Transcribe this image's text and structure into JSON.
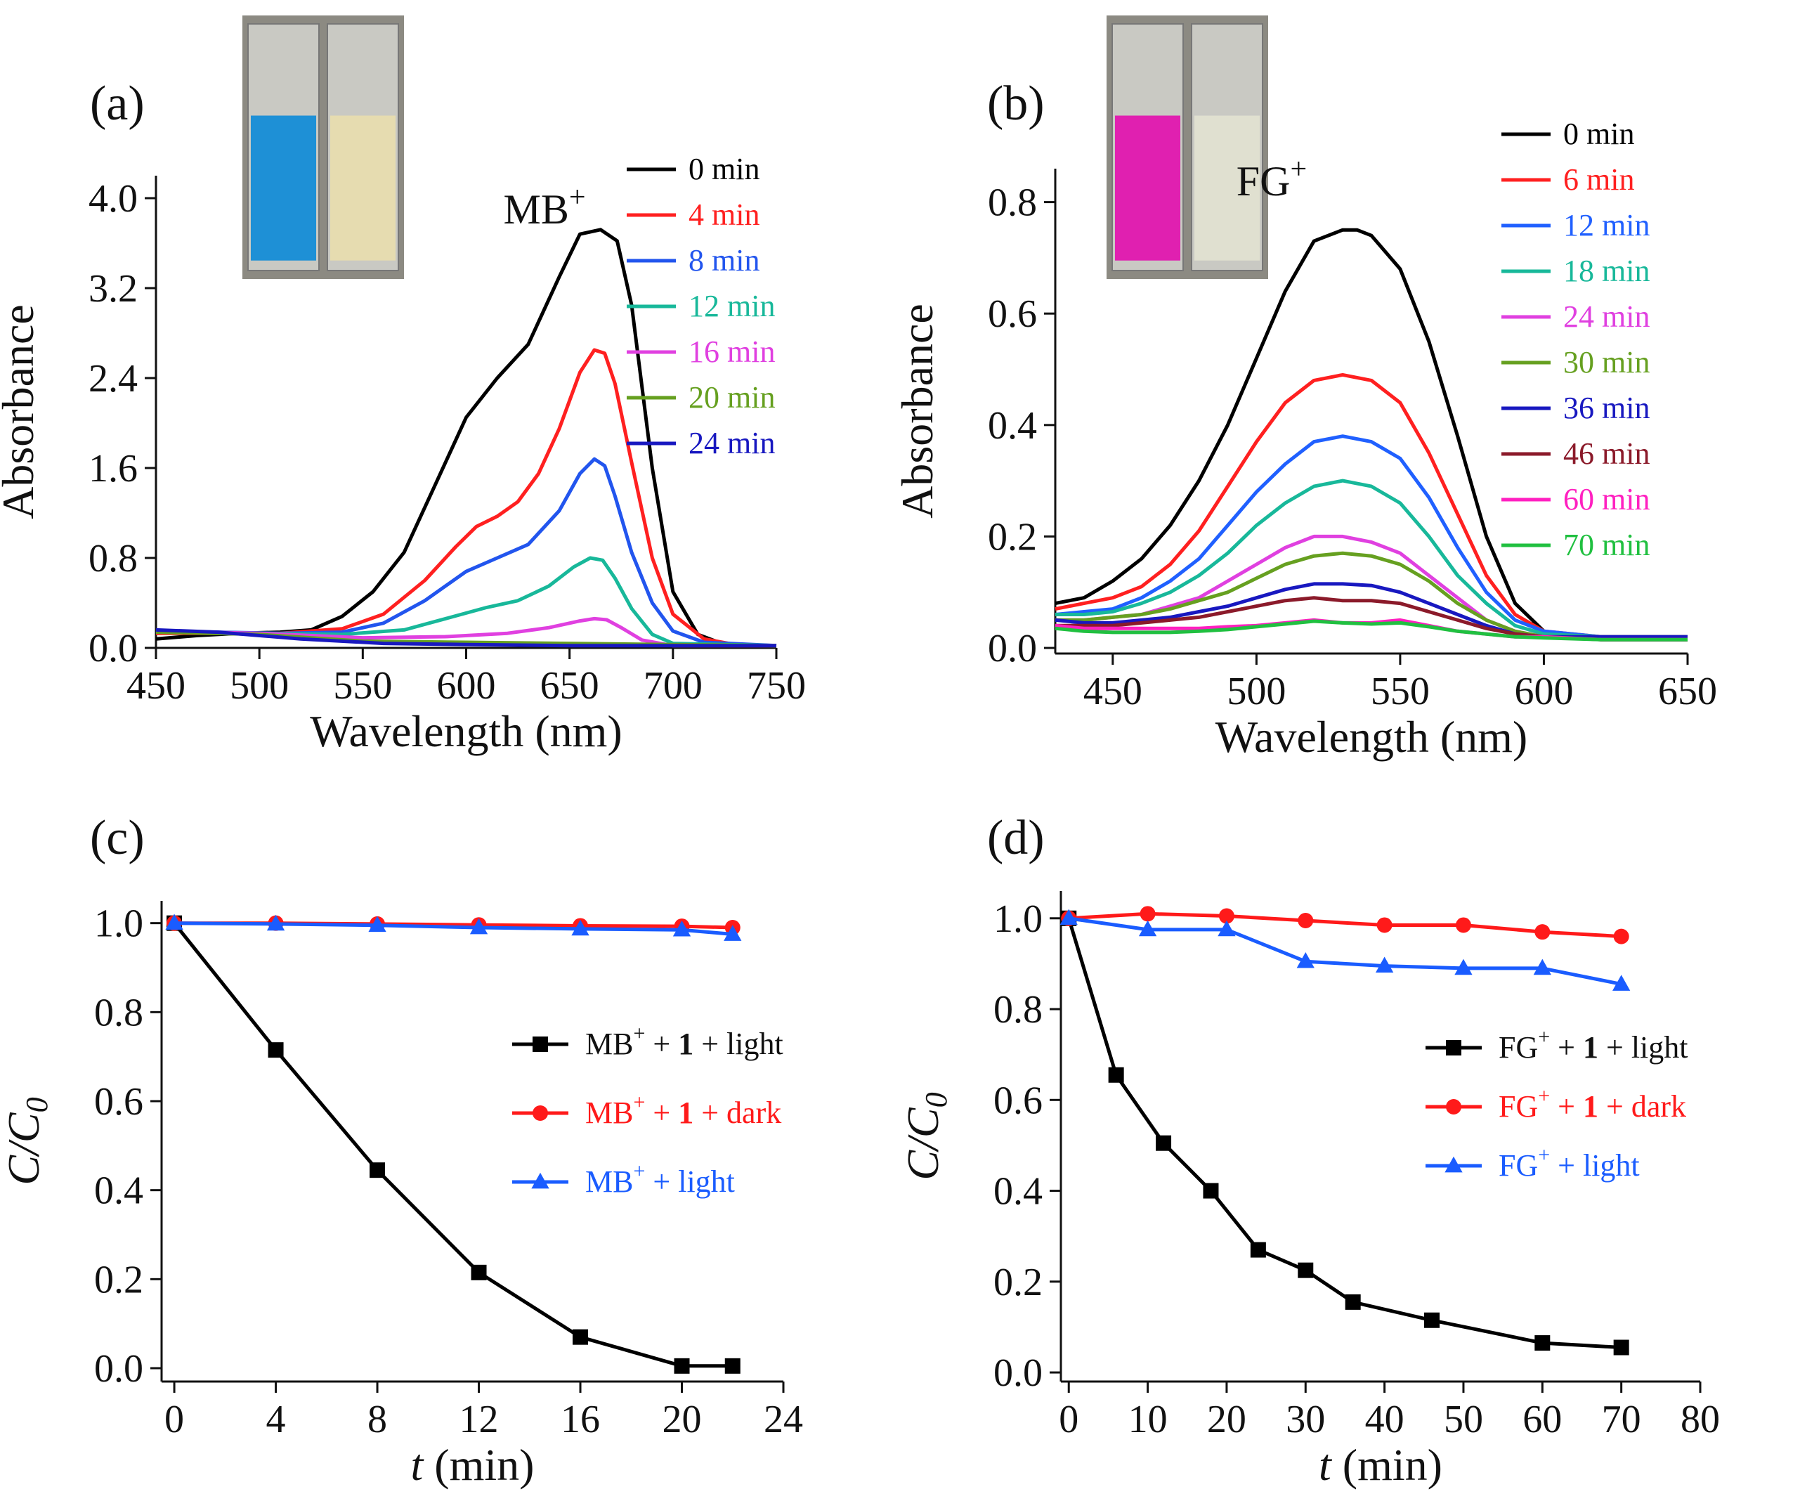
{
  "chart_data": [
    {
      "type": "line",
      "panel_label": "(a)",
      "annotation": {
        "base": "MB",
        "sup": "+"
      },
      "xlabel": "Wavelength (nm)",
      "ylabel": "Absorbance",
      "xlim": [
        450,
        750
      ],
      "ylim": [
        0,
        4.2
      ],
      "xticks": [
        450,
        500,
        550,
        600,
        650,
        700,
        750
      ],
      "yticks": [
        0.0,
        0.8,
        1.6,
        2.4,
        3.2,
        4.0
      ],
      "ytick_labels": [
        "0.0",
        "0.8",
        "1.6",
        "2.4",
        "3.2",
        "4.0"
      ],
      "inset": {
        "description": "cuvette photos",
        "colors": [
          "#1e90d6",
          "#e6dcb0"
        ]
      },
      "series": [
        {
          "name": "0 min",
          "color": "#000000",
          "x": [
            450,
            470,
            490,
            510,
            525,
            540,
            555,
            570,
            585,
            600,
            615,
            630,
            645,
            655,
            665,
            673,
            680,
            690,
            700,
            712,
            725,
            750
          ],
          "y": [
            0.08,
            0.11,
            0.13,
            0.14,
            0.16,
            0.28,
            0.5,
            0.85,
            1.45,
            2.05,
            2.4,
            2.7,
            3.3,
            3.68,
            3.72,
            3.62,
            3.05,
            1.6,
            0.5,
            0.12,
            0.03,
            0.02
          ]
        },
        {
          "name": "4 min",
          "color": "#ff2020",
          "x": [
            450,
            480,
            510,
            540,
            560,
            580,
            595,
            605,
            615,
            625,
            635,
            645,
            655,
            662,
            667,
            672,
            680,
            690,
            700,
            715,
            730,
            750
          ],
          "y": [
            0.13,
            0.13,
            0.13,
            0.17,
            0.3,
            0.6,
            0.9,
            1.08,
            1.17,
            1.3,
            1.55,
            1.95,
            2.45,
            2.65,
            2.62,
            2.35,
            1.65,
            0.8,
            0.3,
            0.08,
            0.03,
            0.02
          ]
        },
        {
          "name": "8 min",
          "color": "#2255ee",
          "x": [
            450,
            480,
            510,
            540,
            560,
            580,
            600,
            615,
            630,
            645,
            655,
            662,
            667,
            672,
            680,
            690,
            700,
            715,
            750
          ],
          "y": [
            0.15,
            0.14,
            0.13,
            0.14,
            0.22,
            0.42,
            0.68,
            0.8,
            0.92,
            1.22,
            1.55,
            1.68,
            1.62,
            1.35,
            0.85,
            0.4,
            0.15,
            0.05,
            0.02
          ]
        },
        {
          "name": "12 min",
          "color": "#18b89a",
          "x": [
            450,
            500,
            540,
            570,
            590,
            610,
            625,
            640,
            652,
            660,
            666,
            672,
            680,
            690,
            700,
            750
          ],
          "y": [
            0.15,
            0.13,
            0.12,
            0.16,
            0.26,
            0.36,
            0.42,
            0.55,
            0.72,
            0.8,
            0.78,
            0.62,
            0.35,
            0.12,
            0.04,
            0.02
          ]
        },
        {
          "name": "16 min",
          "color": "#e040e0",
          "x": [
            450,
            500,
            550,
            590,
            620,
            640,
            655,
            662,
            668,
            675,
            685,
            700,
            750
          ],
          "y": [
            0.15,
            0.13,
            0.09,
            0.1,
            0.13,
            0.18,
            0.24,
            0.26,
            0.25,
            0.18,
            0.07,
            0.02,
            0.02
          ]
        },
        {
          "name": "20 min",
          "color": "#66a020",
          "x": [
            450,
            500,
            550,
            600,
            650,
            700,
            750
          ],
          "y": [
            0.14,
            0.12,
            0.06,
            0.05,
            0.04,
            0.03,
            0.02
          ]
        },
        {
          "name": "24 min",
          "color": "#1818c0",
          "x": [
            450,
            480,
            520,
            560,
            600,
            650,
            700,
            750
          ],
          "y": [
            0.16,
            0.14,
            0.08,
            0.04,
            0.03,
            0.02,
            0.02,
            0.02
          ]
        }
      ]
    },
    {
      "type": "line",
      "panel_label": "(b)",
      "annotation": {
        "base": "FG",
        "sup": "+"
      },
      "xlabel": "Wavelength (nm)",
      "ylabel": "Absorbance",
      "xlim": [
        430,
        650
      ],
      "ylim": [
        -0.01,
        0.86
      ],
      "xticks": [
        450,
        500,
        550,
        600,
        650
      ],
      "yticks": [
        0.0,
        0.2,
        0.4,
        0.6,
        0.8
      ],
      "ytick_labels": [
        "0.0",
        "0.2",
        "0.4",
        "0.6",
        "0.8"
      ],
      "inset": {
        "description": "cuvette photos",
        "colors": [
          "#e020b0",
          "#e0e0d0"
        ]
      },
      "series": [
        {
          "name": "0 min",
          "color": "#000000",
          "x": [
            430,
            440,
            450,
            460,
            470,
            480,
            490,
            500,
            510,
            520,
            530,
            535,
            540,
            550,
            560,
            570,
            580,
            590,
            600,
            610,
            620,
            650
          ],
          "y": [
            0.08,
            0.09,
            0.12,
            0.16,
            0.22,
            0.3,
            0.4,
            0.52,
            0.64,
            0.73,
            0.75,
            0.75,
            0.74,
            0.68,
            0.55,
            0.38,
            0.2,
            0.08,
            0.03,
            0.02,
            0.015,
            0.015
          ]
        },
        {
          "name": "6 min",
          "color": "#ff2020",
          "x": [
            430,
            440,
            450,
            460,
            470,
            480,
            490,
            500,
            510,
            520,
            530,
            540,
            550,
            560,
            570,
            580,
            590,
            600,
            620,
            650
          ],
          "y": [
            0.07,
            0.08,
            0.09,
            0.11,
            0.15,
            0.21,
            0.29,
            0.37,
            0.44,
            0.48,
            0.49,
            0.48,
            0.44,
            0.35,
            0.24,
            0.13,
            0.06,
            0.03,
            0.02,
            0.02
          ]
        },
        {
          "name": "12 min",
          "color": "#2060ff",
          "x": [
            430,
            440,
            450,
            460,
            470,
            480,
            490,
            500,
            510,
            520,
            530,
            540,
            550,
            560,
            570,
            580,
            590,
            600,
            620,
            650
          ],
          "y": [
            0.06,
            0.065,
            0.07,
            0.09,
            0.12,
            0.16,
            0.22,
            0.28,
            0.33,
            0.37,
            0.38,
            0.37,
            0.34,
            0.27,
            0.18,
            0.1,
            0.05,
            0.03,
            0.02,
            0.02
          ]
        },
        {
          "name": "18 min",
          "color": "#18b89a",
          "x": [
            430,
            440,
            450,
            460,
            470,
            480,
            490,
            500,
            510,
            520,
            530,
            540,
            550,
            560,
            570,
            580,
            590,
            600,
            620,
            650
          ],
          "y": [
            0.06,
            0.06,
            0.065,
            0.08,
            0.1,
            0.13,
            0.17,
            0.22,
            0.26,
            0.29,
            0.3,
            0.29,
            0.26,
            0.2,
            0.13,
            0.08,
            0.04,
            0.025,
            0.02,
            0.02
          ]
        },
        {
          "name": "24 min",
          "color": "#e040e0",
          "x": [
            430,
            440,
            450,
            460,
            470,
            480,
            490,
            500,
            510,
            520,
            530,
            540,
            550,
            560,
            570,
            580,
            590,
            600,
            620,
            650
          ],
          "y": [
            0.05,
            0.05,
            0.055,
            0.06,
            0.075,
            0.09,
            0.12,
            0.15,
            0.18,
            0.2,
            0.2,
            0.19,
            0.17,
            0.13,
            0.09,
            0.05,
            0.03,
            0.02,
            0.02,
            0.02
          ]
        },
        {
          "name": "30 min",
          "color": "#66a020",
          "x": [
            430,
            440,
            450,
            460,
            470,
            480,
            490,
            500,
            510,
            520,
            530,
            540,
            550,
            560,
            570,
            580,
            590,
            600,
            620,
            650
          ],
          "y": [
            0.05,
            0.05,
            0.055,
            0.06,
            0.07,
            0.085,
            0.1,
            0.125,
            0.15,
            0.165,
            0.17,
            0.165,
            0.15,
            0.12,
            0.08,
            0.05,
            0.03,
            0.02,
            0.02,
            0.02
          ]
        },
        {
          "name": "36 min",
          "color": "#1818c0",
          "x": [
            430,
            440,
            450,
            460,
            470,
            480,
            490,
            500,
            510,
            520,
            530,
            540,
            550,
            560,
            570,
            580,
            590,
            600,
            620,
            650
          ],
          "y": [
            0.05,
            0.045,
            0.045,
            0.05,
            0.055,
            0.065,
            0.075,
            0.09,
            0.105,
            0.115,
            0.115,
            0.112,
            0.1,
            0.08,
            0.06,
            0.04,
            0.025,
            0.02,
            0.02,
            0.02
          ]
        },
        {
          "name": "46 min",
          "color": "#8b1a2a",
          "x": [
            430,
            440,
            450,
            460,
            470,
            480,
            490,
            500,
            510,
            520,
            530,
            540,
            550,
            560,
            570,
            580,
            590,
            600,
            620,
            650
          ],
          "y": [
            0.04,
            0.04,
            0.04,
            0.045,
            0.05,
            0.055,
            0.065,
            0.075,
            0.085,
            0.09,
            0.085,
            0.085,
            0.08,
            0.065,
            0.05,
            0.035,
            0.025,
            0.02,
            0.015,
            0.015
          ]
        },
        {
          "name": "60 min",
          "color": "#ff20c0",
          "x": [
            430,
            440,
            450,
            460,
            470,
            480,
            490,
            500,
            510,
            520,
            530,
            540,
            550,
            560,
            570,
            580,
            590,
            600,
            620,
            650
          ],
          "y": [
            0.04,
            0.035,
            0.035,
            0.035,
            0.035,
            0.035,
            0.038,
            0.04,
            0.045,
            0.05,
            0.045,
            0.045,
            0.05,
            0.04,
            0.03,
            0.025,
            0.02,
            0.02,
            0.015,
            0.015
          ]
        },
        {
          "name": "70 min",
          "color": "#20c040",
          "x": [
            430,
            440,
            450,
            460,
            470,
            480,
            490,
            500,
            510,
            520,
            530,
            540,
            550,
            560,
            570,
            580,
            590,
            600,
            620,
            650
          ],
          "y": [
            0.035,
            0.03,
            0.028,
            0.028,
            0.028,
            0.03,
            0.033,
            0.038,
            0.043,
            0.048,
            0.045,
            0.043,
            0.045,
            0.038,
            0.03,
            0.025,
            0.02,
            0.018,
            0.015,
            0.015
          ]
        }
      ]
    },
    {
      "type": "line",
      "panel_label": "(c)",
      "xlabel": "t (min)",
      "ylabel": "C/C0",
      "xlim": [
        -0.5,
        24
      ],
      "ylim": [
        -0.03,
        1.05
      ],
      "xticks": [
        0,
        4,
        8,
        12,
        16,
        20,
        24
      ],
      "yticks": [
        0.0,
        0.2,
        0.4,
        0.6,
        0.8,
        1.0
      ],
      "ytick_labels": [
        "0.0",
        "0.2",
        "0.4",
        "0.6",
        "0.8",
        "1.0"
      ],
      "series": [
        {
          "name": "MB+ + 1 + light",
          "legend": [
            "MB",
            "+",
            " + ",
            "1",
            " + light"
          ],
          "color": "#000000",
          "marker": "square",
          "x": [
            0,
            4,
            8,
            12,
            16,
            20,
            22
          ],
          "y": [
            1.0,
            0.715,
            0.445,
            0.215,
            0.07,
            0.005,
            0.005
          ]
        },
        {
          "name": "MB+ + 1 + dark",
          "legend": [
            "MB",
            "+",
            " + ",
            "1",
            " +  dark"
          ],
          "color": "#ff1a1a",
          "marker": "circle",
          "x": [
            0,
            4,
            8,
            12,
            16,
            20,
            22
          ],
          "y": [
            1.0,
            1.0,
            0.998,
            0.996,
            0.994,
            0.993,
            0.99
          ]
        },
        {
          "name": "MB+ + light",
          "legend": [
            "MB",
            "+",
            " + light",
            "",
            ""
          ],
          "color": "#1a5cff",
          "marker": "triangle",
          "x": [
            0,
            4,
            8,
            12,
            16,
            20,
            22
          ],
          "y": [
            1.0,
            0.998,
            0.995,
            0.99,
            0.987,
            0.985,
            0.975
          ]
        }
      ]
    },
    {
      "type": "line",
      "panel_label": "(d)",
      "xlabel": "t (min)",
      "ylabel": "C/C0",
      "xlim": [
        -1,
        80
      ],
      "ylim": [
        -0.02,
        1.06
      ],
      "xticks": [
        0,
        10,
        20,
        30,
        40,
        50,
        60,
        70,
        80
      ],
      "yticks": [
        0.0,
        0.2,
        0.4,
        0.6,
        0.8,
        1.0
      ],
      "ytick_labels": [
        "0.0",
        "0.2",
        "0.4",
        "0.6",
        "0.8",
        "1.0"
      ],
      "series": [
        {
          "name": "FG+ + 1 + light",
          "legend": [
            "FG",
            "+",
            " + ",
            "1",
            " + light"
          ],
          "color": "#000000",
          "marker": "square",
          "x": [
            0,
            6,
            12,
            18,
            24,
            30,
            36,
            46,
            60,
            70
          ],
          "y": [
            1.0,
            0.655,
            0.505,
            0.4,
            0.27,
            0.225,
            0.155,
            0.115,
            0.065,
            0.055
          ]
        },
        {
          "name": "FG+ + 1 + dark",
          "legend": [
            "FG",
            "+",
            " + ",
            "1",
            " + dark"
          ],
          "color": "#ff1a1a",
          "marker": "circle",
          "x": [
            0,
            10,
            20,
            30,
            40,
            50,
            60,
            70
          ],
          "y": [
            1.0,
            1.01,
            1.005,
            0.995,
            0.985,
            0.985,
            0.97,
            0.96
          ]
        },
        {
          "name": "FG+ + light",
          "legend": [
            "FG",
            "+",
            " + light",
            "",
            ""
          ],
          "color": "#1a5cff",
          "marker": "triangle",
          "x": [
            0,
            10,
            20,
            30,
            40,
            50,
            60,
            70
          ],
          "y": [
            1.0,
            0.975,
            0.975,
            0.905,
            0.895,
            0.89,
            0.89,
            0.855
          ]
        }
      ]
    }
  ]
}
